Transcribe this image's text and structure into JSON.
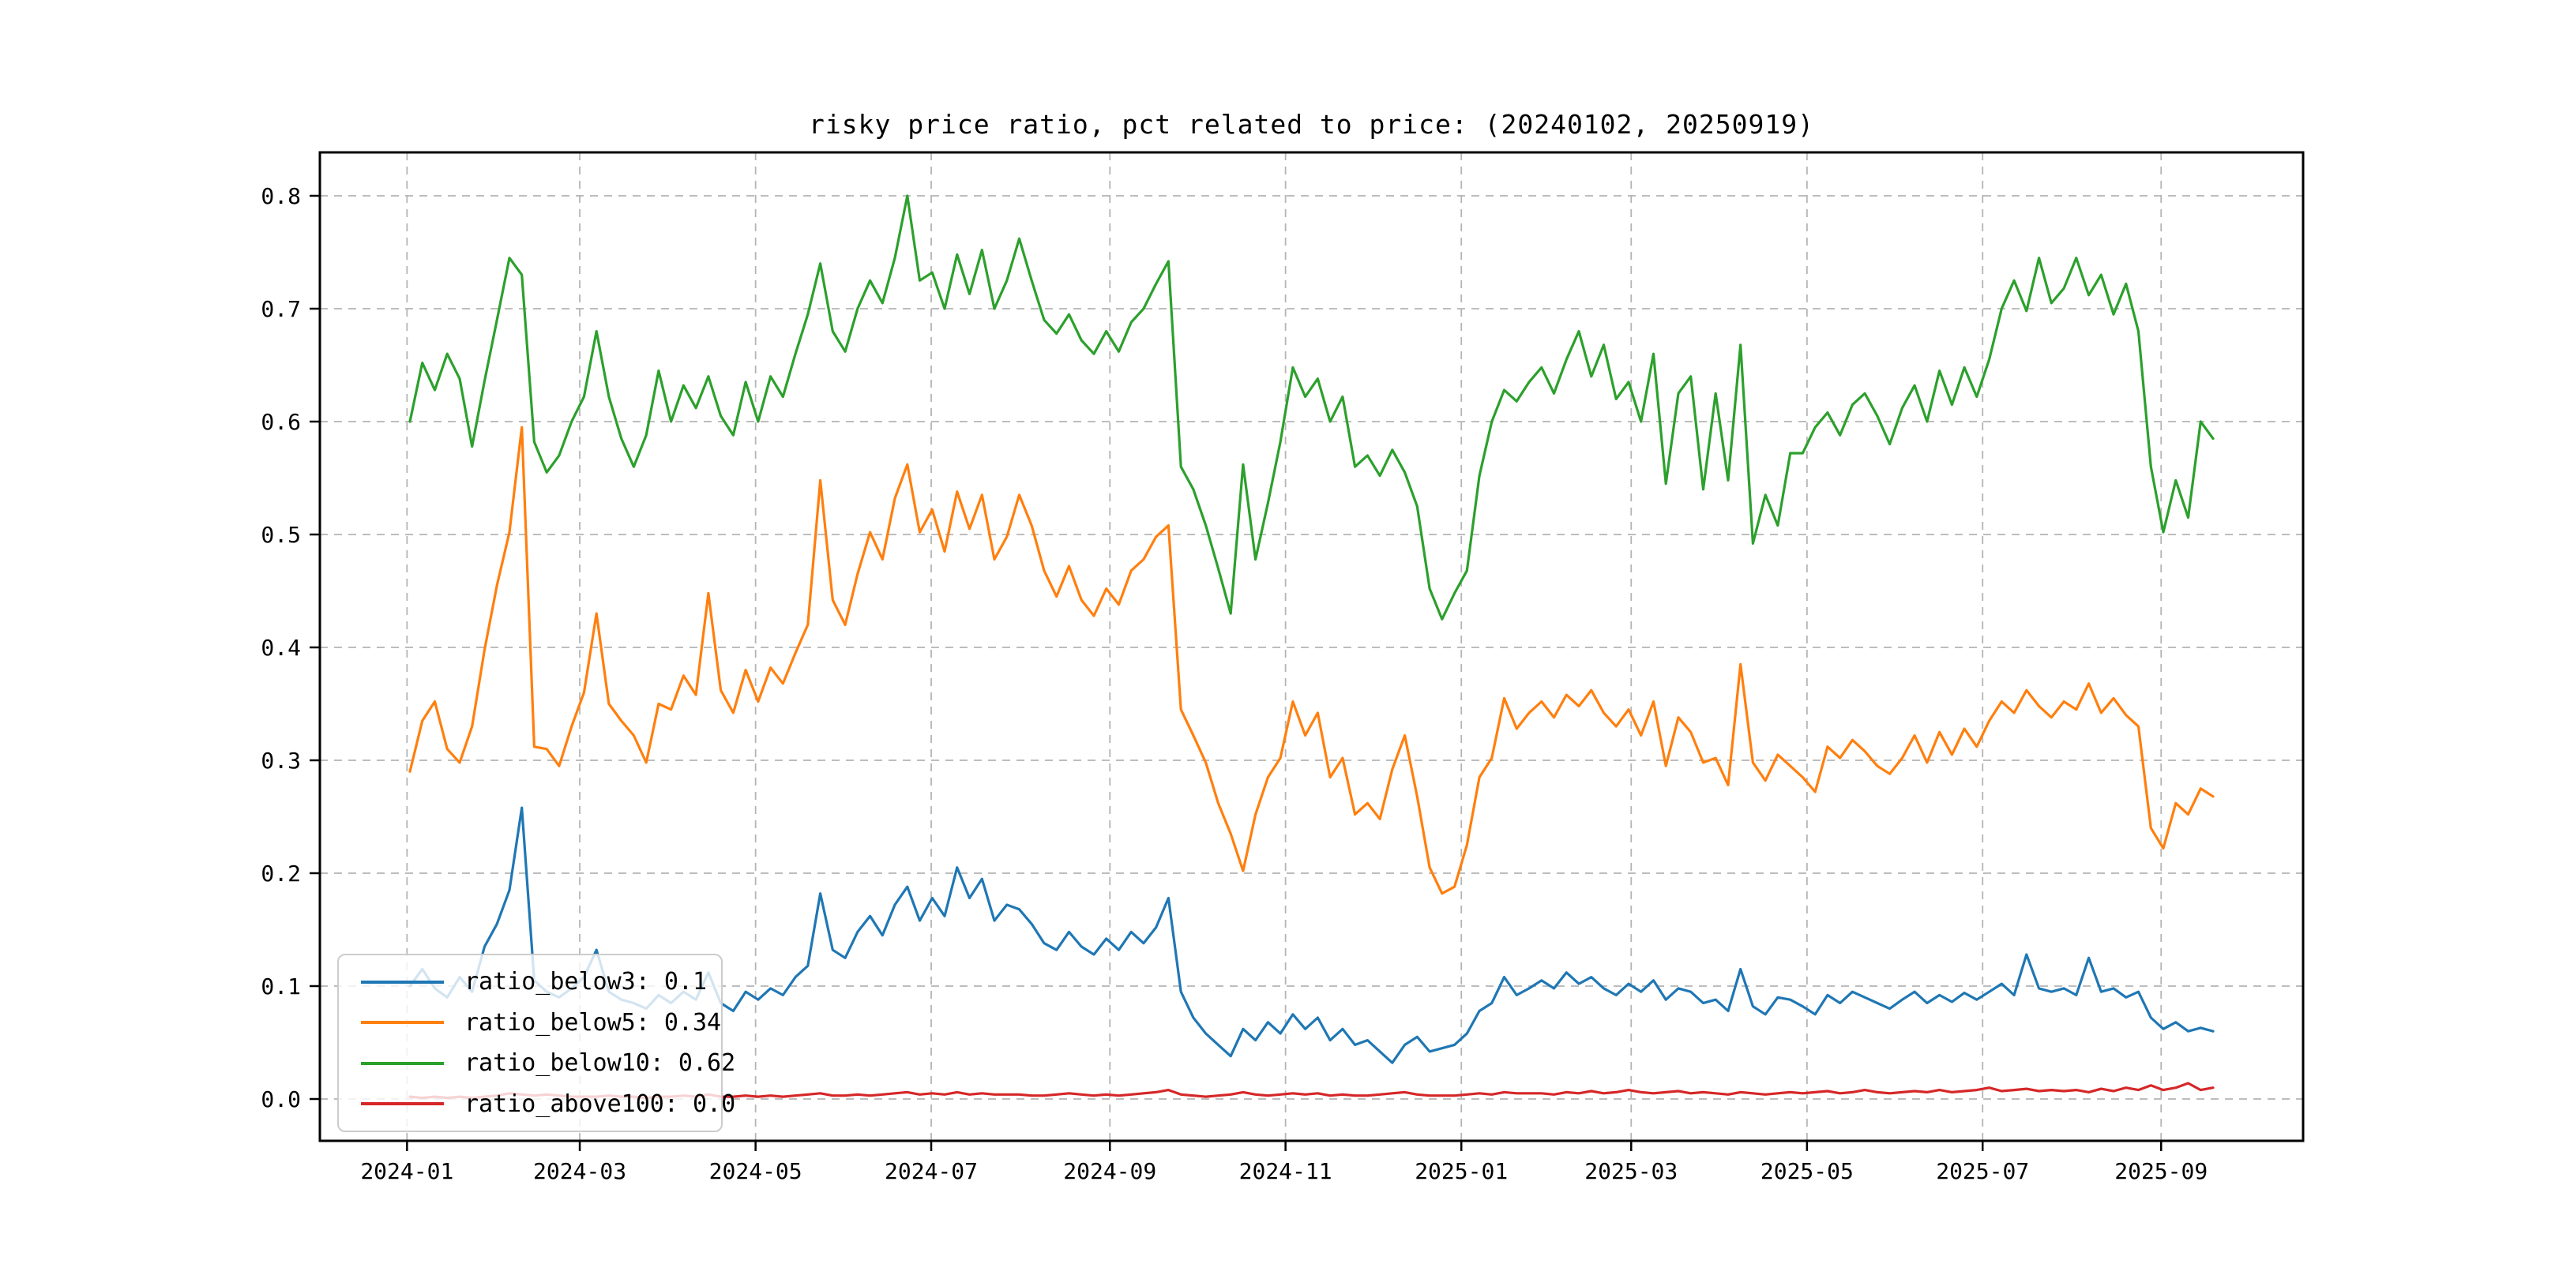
{
  "page": {
    "background": "#ffffff",
    "text_color": "#000000",
    "grid_color": "#b4b4b4",
    "axes_color": "#000000"
  },
  "chart_data": {
    "type": "line",
    "title": "risky price ratio, pct related to price: (20240102, 20250919)",
    "xlabel": "",
    "ylabel": "",
    "date_range": [
      "20240102",
      "20250919"
    ],
    "grid": true,
    "grid_style": "dashed",
    "legend_position": "lower left",
    "ylim": [
      0.0,
      0.8
    ],
    "y_ticks": [
      {
        "label": "0.0",
        "value": 0.0
      },
      {
        "label": "0.1",
        "value": 0.1
      },
      {
        "label": "0.2",
        "value": 0.2
      },
      {
        "label": "0.3",
        "value": 0.3
      },
      {
        "label": "0.4",
        "value": 0.4
      },
      {
        "label": "0.5",
        "value": 0.5
      },
      {
        "label": "0.6",
        "value": 0.6
      },
      {
        "label": "0.7",
        "value": 0.7
      },
      {
        "label": "0.8",
        "value": 0.8
      }
    ],
    "x_ticks": [
      {
        "label": "2024-01",
        "f": -0.0016
      },
      {
        "label": "2024-03",
        "f": 0.0942
      },
      {
        "label": "2024-05",
        "f": 0.1917
      },
      {
        "label": "2024-07",
        "f": 0.2891
      },
      {
        "label": "2024-09",
        "f": 0.3882
      },
      {
        "label": "2024-11",
        "f": 0.4856
      },
      {
        "label": "2025-01",
        "f": 0.5831
      },
      {
        "label": "2025-03",
        "f": 0.6773
      },
      {
        "label": "2025-05",
        "f": 0.7748
      },
      {
        "label": "2025-07",
        "f": 0.8722
      },
      {
        "label": "2025-09",
        "f": 0.9712
      }
    ],
    "series": [
      {
        "name": "ratio_below3",
        "label": "ratio_below3: 0.1",
        "color": "#1f77b4",
        "values": [
          0.1,
          0.115,
          0.098,
          0.09,
          0.108,
          0.095,
          0.135,
          0.155,
          0.185,
          0.258,
          0.105,
          0.095,
          0.09,
          0.098,
          0.108,
          0.132,
          0.095,
          0.088,
          0.085,
          0.08,
          0.092,
          0.085,
          0.095,
          0.088,
          0.112,
          0.085,
          0.078,
          0.095,
          0.088,
          0.098,
          0.092,
          0.108,
          0.118,
          0.182,
          0.132,
          0.125,
          0.148,
          0.162,
          0.145,
          0.172,
          0.188,
          0.158,
          0.178,
          0.162,
          0.205,
          0.178,
          0.195,
          0.158,
          0.172,
          0.168,
          0.155,
          0.138,
          0.132,
          0.148,
          0.135,
          0.128,
          0.142,
          0.132,
          0.148,
          0.138,
          0.152,
          0.178,
          0.095,
          0.072,
          0.058,
          0.048,
          0.038,
          0.062,
          0.052,
          0.068,
          0.058,
          0.075,
          0.062,
          0.072,
          0.052,
          0.062,
          0.048,
          0.052,
          0.042,
          0.032,
          0.048,
          0.055,
          0.042,
          0.045,
          0.048,
          0.058,
          0.078,
          0.085,
          0.108,
          0.092,
          0.098,
          0.105,
          0.098,
          0.112,
          0.102,
          0.108,
          0.098,
          0.092,
          0.102,
          0.095,
          0.105,
          0.088,
          0.098,
          0.095,
          0.085,
          0.088,
          0.078,
          0.115,
          0.082,
          0.075,
          0.09,
          0.088,
          0.082,
          0.075,
          0.092,
          0.085,
          0.095,
          0.09,
          0.085,
          0.08,
          0.088,
          0.095,
          0.085,
          0.092,
          0.086,
          0.094,
          0.088,
          0.095,
          0.102,
          0.092,
          0.128,
          0.098,
          0.095,
          0.098,
          0.092,
          0.125,
          0.095,
          0.098,
          0.09,
          0.095,
          0.072,
          0.062,
          0.068,
          0.06,
          0.063,
          0.06
        ]
      },
      {
        "name": "ratio_below5",
        "label": "ratio_below5: 0.34",
        "color": "#ff7f0e",
        "values": [
          0.29,
          0.335,
          0.352,
          0.31,
          0.298,
          0.33,
          0.398,
          0.455,
          0.502,
          0.595,
          0.312,
          0.31,
          0.295,
          0.33,
          0.36,
          0.43,
          0.35,
          0.335,
          0.322,
          0.298,
          0.35,
          0.345,
          0.375,
          0.358,
          0.448,
          0.362,
          0.342,
          0.38,
          0.352,
          0.382,
          0.368,
          0.395,
          0.42,
          0.548,
          0.442,
          0.42,
          0.465,
          0.502,
          0.478,
          0.532,
          0.562,
          0.502,
          0.522,
          0.485,
          0.538,
          0.505,
          0.535,
          0.478,
          0.498,
          0.535,
          0.508,
          0.468,
          0.445,
          0.472,
          0.442,
          0.428,
          0.452,
          0.438,
          0.468,
          0.478,
          0.498,
          0.508,
          0.345,
          0.322,
          0.298,
          0.262,
          0.235,
          0.202,
          0.252,
          0.285,
          0.302,
          0.352,
          0.322,
          0.342,
          0.285,
          0.302,
          0.252,
          0.262,
          0.248,
          0.292,
          0.322,
          0.268,
          0.205,
          0.182,
          0.188,
          0.225,
          0.285,
          0.302,
          0.355,
          0.328,
          0.342,
          0.352,
          0.338,
          0.358,
          0.348,
          0.362,
          0.342,
          0.33,
          0.345,
          0.322,
          0.352,
          0.295,
          0.338,
          0.325,
          0.298,
          0.302,
          0.278,
          0.385,
          0.298,
          0.282,
          0.305,
          0.295,
          0.285,
          0.272,
          0.312,
          0.302,
          0.318,
          0.308,
          0.295,
          0.288,
          0.302,
          0.322,
          0.298,
          0.325,
          0.305,
          0.328,
          0.312,
          0.335,
          0.352,
          0.342,
          0.362,
          0.348,
          0.338,
          0.352,
          0.345,
          0.368,
          0.342,
          0.355,
          0.34,
          0.33,
          0.24,
          0.222,
          0.262,
          0.252,
          0.275,
          0.268
        ]
      },
      {
        "name": "ratio_below10",
        "label": "ratio_below10: 0.62",
        "color": "#2ca02c",
        "values": [
          0.6,
          0.652,
          0.628,
          0.66,
          0.638,
          0.578,
          0.636,
          0.69,
          0.745,
          0.73,
          0.582,
          0.555,
          0.57,
          0.6,
          0.622,
          0.68,
          0.622,
          0.585,
          0.56,
          0.588,
          0.645,
          0.6,
          0.632,
          0.612,
          0.64,
          0.605,
          0.588,
          0.635,
          0.6,
          0.64,
          0.622,
          0.66,
          0.695,
          0.74,
          0.68,
          0.662,
          0.7,
          0.725,
          0.705,
          0.745,
          0.8,
          0.725,
          0.732,
          0.7,
          0.748,
          0.713,
          0.752,
          0.7,
          0.725,
          0.762,
          0.725,
          0.69,
          0.678,
          0.695,
          0.672,
          0.66,
          0.68,
          0.662,
          0.688,
          0.7,
          0.722,
          0.742,
          0.56,
          0.54,
          0.508,
          0.47,
          0.43,
          0.562,
          0.478,
          0.528,
          0.582,
          0.648,
          0.622,
          0.638,
          0.6,
          0.622,
          0.56,
          0.57,
          0.552,
          0.575,
          0.555,
          0.525,
          0.452,
          0.425,
          0.448,
          0.468,
          0.552,
          0.6,
          0.628,
          0.618,
          0.635,
          0.648,
          0.625,
          0.655,
          0.68,
          0.64,
          0.668,
          0.62,
          0.635,
          0.6,
          0.66,
          0.545,
          0.625,
          0.64,
          0.54,
          0.625,
          0.548,
          0.668,
          0.492,
          0.535,
          0.508,
          0.572,
          0.572,
          0.595,
          0.608,
          0.588,
          0.615,
          0.625,
          0.605,
          0.58,
          0.612,
          0.632,
          0.6,
          0.645,
          0.615,
          0.648,
          0.622,
          0.655,
          0.7,
          0.725,
          0.698,
          0.745,
          0.705,
          0.718,
          0.745,
          0.712,
          0.73,
          0.695,
          0.722,
          0.68,
          0.56,
          0.502,
          0.548,
          0.515,
          0.6,
          0.585
        ]
      },
      {
        "name": "ratio_above100",
        "label": "ratio_above100: 0.0",
        "color": "#d62728",
        "values": [
          0.002,
          0.001,
          0.002,
          0.001,
          0.002,
          0.001,
          0.002,
          0.003,
          0.005,
          0.004,
          0.003,
          0.004,
          0.003,
          0.002,
          0.002,
          0.002,
          0.003,
          0.002,
          0.002,
          0.001,
          0.002,
          0.002,
          0.003,
          0.002,
          0.004,
          0.002,
          0.002,
          0.003,
          0.002,
          0.003,
          0.002,
          0.003,
          0.004,
          0.005,
          0.003,
          0.003,
          0.004,
          0.003,
          0.004,
          0.005,
          0.006,
          0.004,
          0.005,
          0.004,
          0.006,
          0.004,
          0.005,
          0.004,
          0.004,
          0.004,
          0.003,
          0.003,
          0.004,
          0.005,
          0.004,
          0.003,
          0.004,
          0.003,
          0.004,
          0.005,
          0.006,
          0.008,
          0.004,
          0.003,
          0.002,
          0.003,
          0.004,
          0.006,
          0.004,
          0.003,
          0.004,
          0.005,
          0.004,
          0.005,
          0.003,
          0.004,
          0.003,
          0.003,
          0.004,
          0.005,
          0.006,
          0.004,
          0.003,
          0.003,
          0.003,
          0.004,
          0.005,
          0.004,
          0.006,
          0.005,
          0.005,
          0.005,
          0.004,
          0.006,
          0.005,
          0.007,
          0.005,
          0.006,
          0.008,
          0.006,
          0.005,
          0.006,
          0.007,
          0.005,
          0.006,
          0.005,
          0.004,
          0.006,
          0.005,
          0.004,
          0.005,
          0.006,
          0.005,
          0.006,
          0.007,
          0.005,
          0.006,
          0.008,
          0.006,
          0.005,
          0.006,
          0.007,
          0.006,
          0.008,
          0.006,
          0.007,
          0.008,
          0.01,
          0.007,
          0.008,
          0.009,
          0.007,
          0.008,
          0.007,
          0.008,
          0.006,
          0.009,
          0.007,
          0.01,
          0.008,
          0.012,
          0.008,
          0.01,
          0.014,
          0.008,
          0.01
        ]
      }
    ]
  }
}
